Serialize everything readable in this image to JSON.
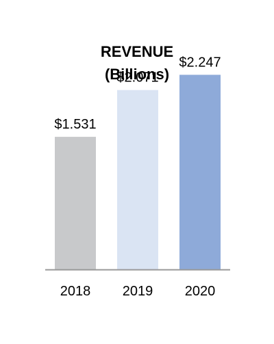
{
  "chart_data": {
    "type": "bar",
    "title": "REVENUE",
    "subtitle": "(Billions)",
    "categories": [
      "2018",
      "2019",
      "2020"
    ],
    "values": [
      1.531,
      2.071,
      2.247
    ],
    "value_labels": [
      "$1.531",
      "$2.071",
      "$2.247"
    ],
    "colors": [
      "#c8c9cb",
      "#dae4f3",
      "#8eaad9"
    ],
    "axis_color": "#999999",
    "ylim": [
      0,
      2.4
    ],
    "grid": false,
    "legend": "none"
  }
}
